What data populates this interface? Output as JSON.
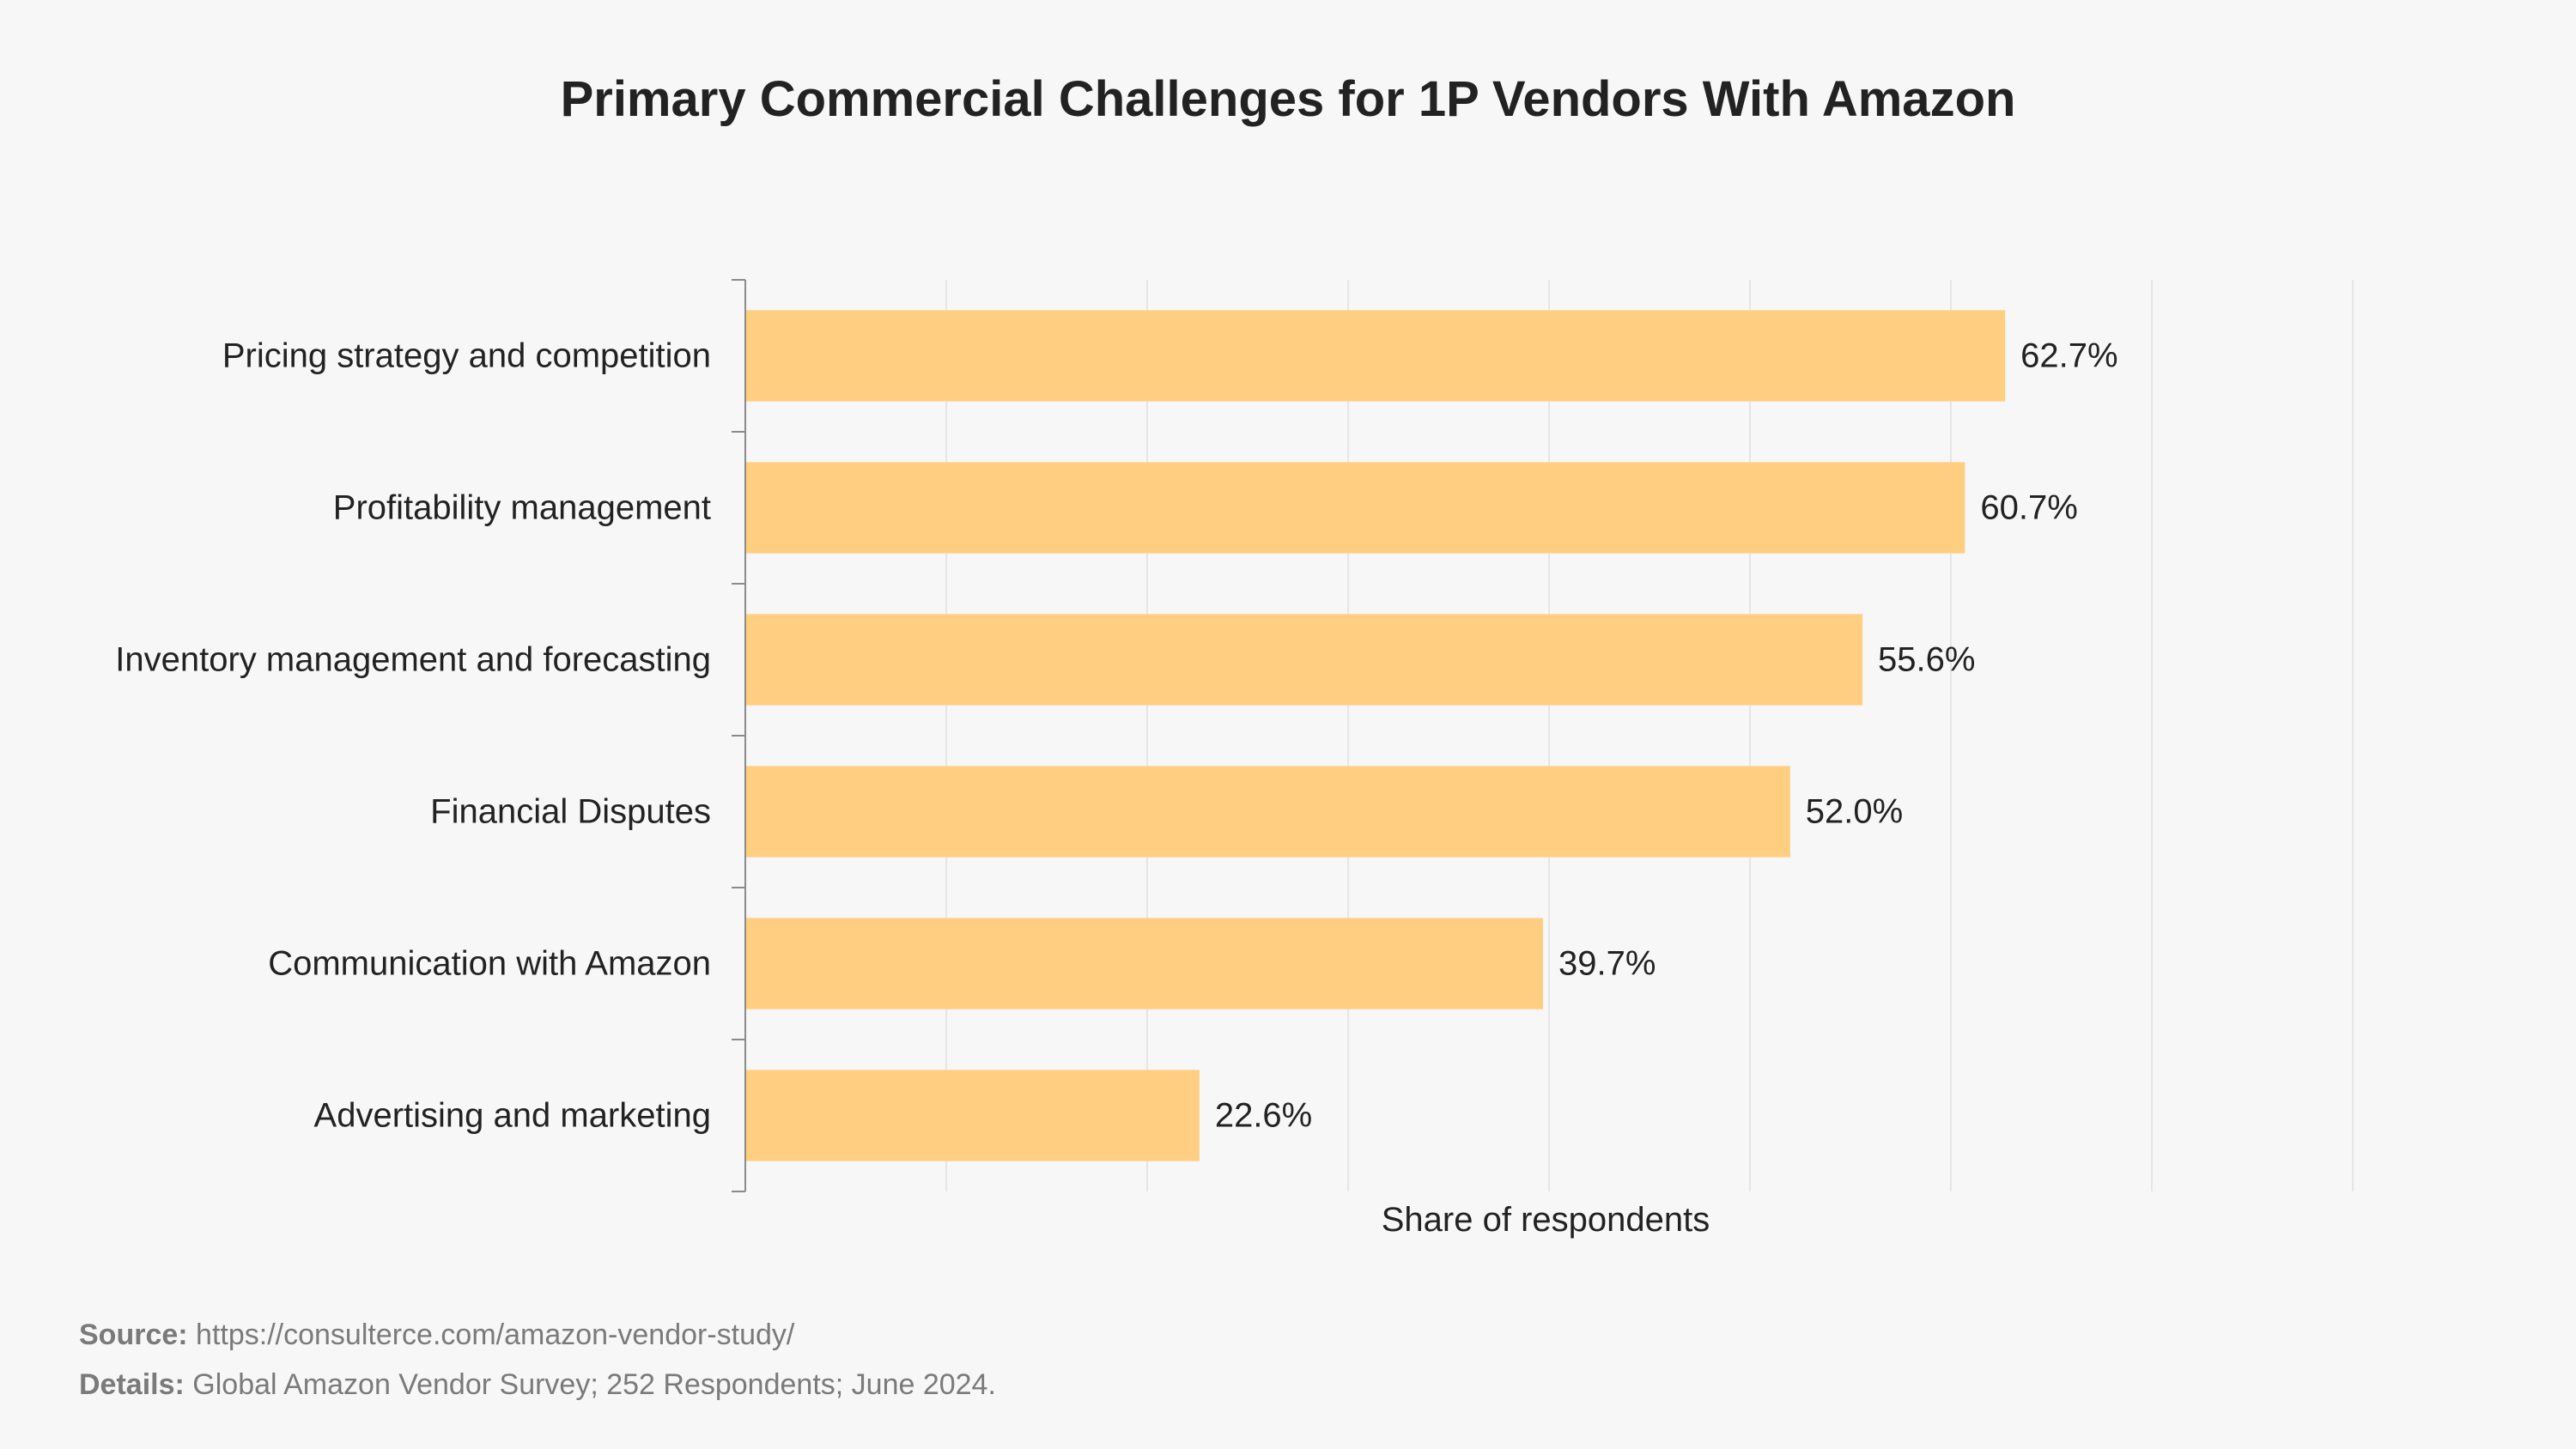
{
  "colors": {
    "bar": "#ffce80",
    "grid": "#e6e6e6",
    "axis": "#8a8a8a",
    "text": "#222222",
    "footer": "#7a7a7a",
    "background": "#f7f7f7"
  },
  "chart_data": {
    "type": "bar",
    "orientation": "horizontal",
    "title": "Primary Commercial Challenges for 1P Vendors With Amazon",
    "xlabel": "Share of respondents",
    "ylabel": "",
    "categories": [
      "Pricing strategy and competition",
      "Profitability management",
      "Inventory management and forecasting",
      "Financial Disputes",
      "Communication with Amazon",
      "Advertising and marketing"
    ],
    "values": [
      62.7,
      60.7,
      55.6,
      52.0,
      39.7,
      22.6
    ],
    "value_labels": [
      "62.7%",
      "60.7%",
      "55.6%",
      "52.0%",
      "39.7%",
      "22.6%"
    ],
    "xlim": [
      0,
      80
    ],
    "grid": true,
    "tick_labels_shown": false
  },
  "footer": {
    "source_label": "Source:",
    "source_value": "https://consulterce.com/amazon-vendor-study/",
    "details_label": "Details:",
    "details_value": "Global Amazon Vendor Survey; 252 Respondents; June 2024."
  }
}
